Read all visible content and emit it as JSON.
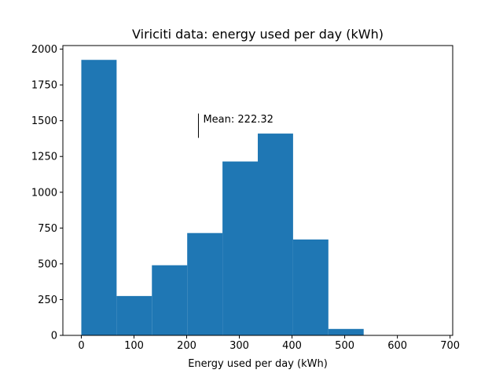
{
  "chart_data": {
    "type": "bar",
    "title": "Viriciti data: energy used per day (kWh)",
    "xlabel": "Energy used per day (kWh)",
    "ylabel": "",
    "xlim": [
      -35,
      705
    ],
    "ylim": [
      0,
      2025
    ],
    "xticks": [
      0,
      100,
      200,
      300,
      400,
      500,
      600,
      700
    ],
    "yticks": [
      0,
      250,
      500,
      750,
      1000,
      1250,
      1500,
      1750,
      2000
    ],
    "bins": [
      {
        "x0": 0,
        "x1": 67,
        "value": 1925
      },
      {
        "x0": 67,
        "x1": 134,
        "value": 275
      },
      {
        "x0": 134,
        "x1": 201,
        "value": 490
      },
      {
        "x0": 201,
        "x1": 268,
        "value": 715
      },
      {
        "x0": 268,
        "x1": 335,
        "value": 1215
      },
      {
        "x0": 335,
        "x1": 402,
        "value": 1410
      },
      {
        "x0": 402,
        "x1": 469,
        "value": 670
      },
      {
        "x0": 469,
        "x1": 536,
        "value": 45
      },
      {
        "x0": 536,
        "x1": 603,
        "value": 0
      },
      {
        "x0": 603,
        "x1": 670,
        "value": 0
      }
    ],
    "bar_color": "#1f77b4",
    "grid": false,
    "annotations": [
      {
        "text": "Mean: 222.32",
        "x": 222.32,
        "y": 1510,
        "marker_y0": 1380,
        "marker_y1": 1550
      }
    ]
  }
}
